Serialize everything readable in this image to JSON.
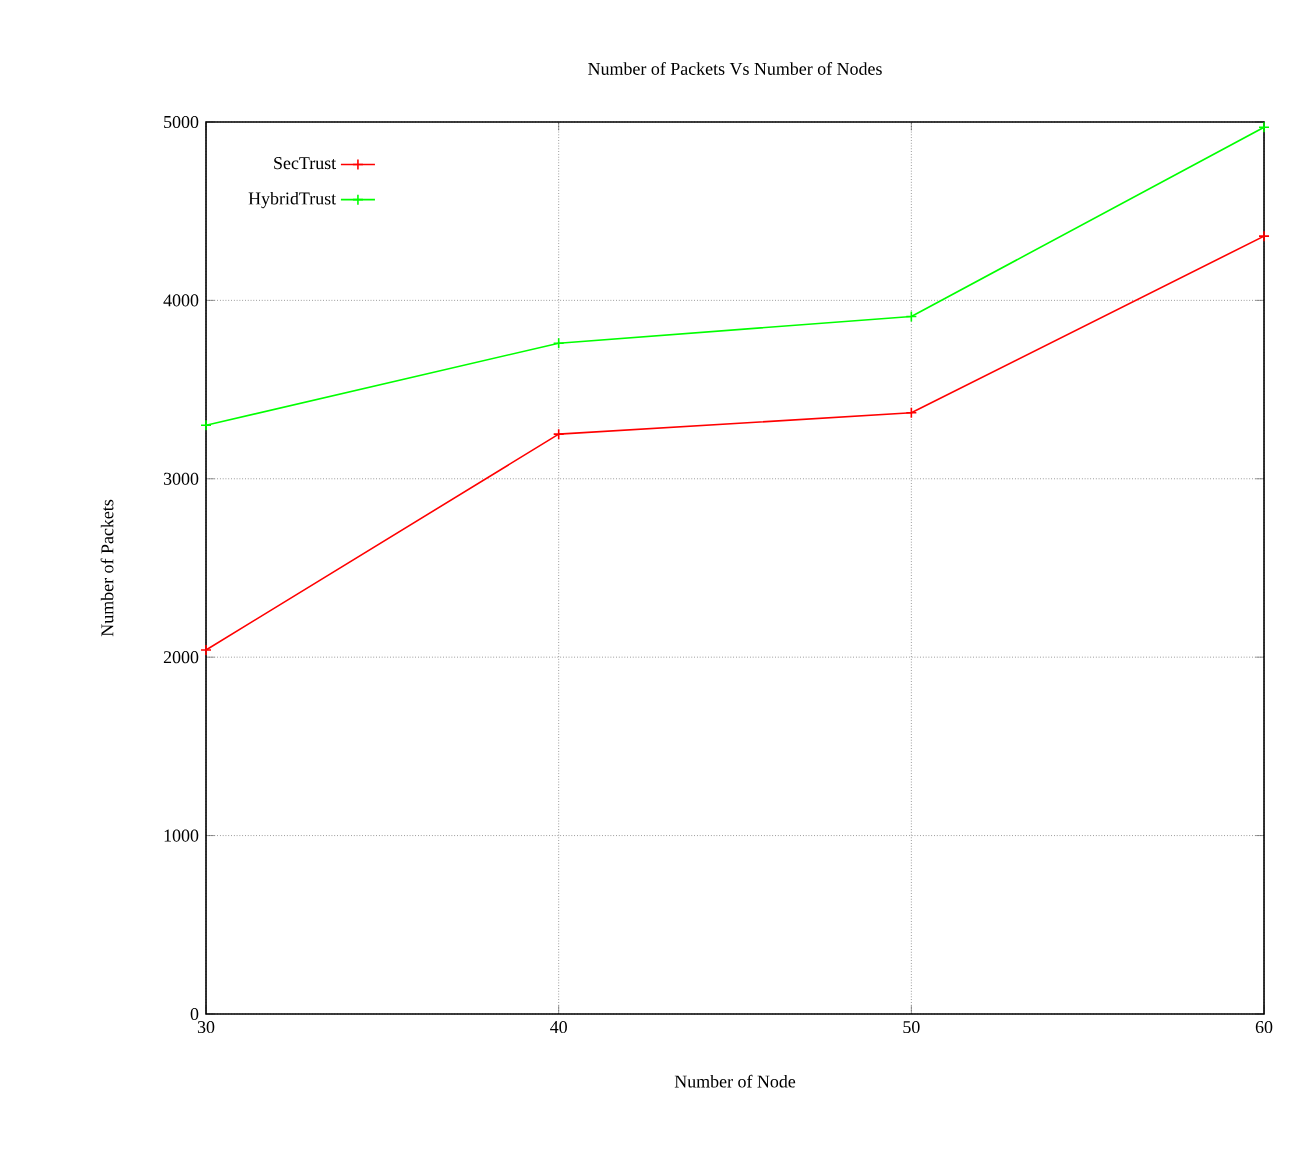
{
  "chart_data": {
    "type": "line",
    "title": "Number of Packets Vs Number of Nodes",
    "xlabel": "Number of Node",
    "ylabel": "Number of Packets",
    "x": [
      30,
      40,
      50,
      60
    ],
    "series": [
      {
        "name": "SecTrust",
        "color": "#ff0000",
        "values": [
          2040,
          3250,
          3370,
          4360
        ],
        "marker": "cross"
      },
      {
        "name": "HybridTrust",
        "color": "#00ff00",
        "values": [
          3300,
          3760,
          3910,
          4970
        ],
        "marker": "cross"
      }
    ],
    "xlim": [
      30,
      60
    ],
    "xticks": [
      30,
      40,
      50,
      60
    ],
    "ylim": [
      0,
      5000
    ],
    "yticks": [
      0,
      1000,
      2000,
      3000,
      4000,
      5000
    ],
    "grid": true,
    "legend": "top left",
    "line_style": "solid"
  }
}
